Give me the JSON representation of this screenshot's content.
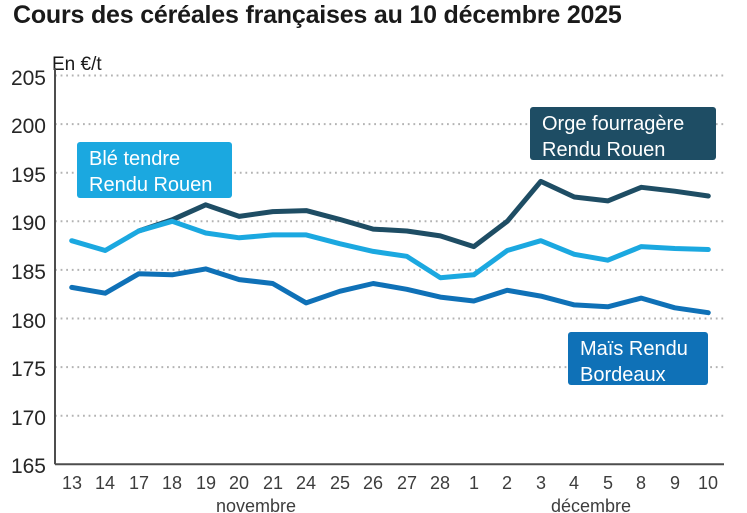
{
  "page": {
    "title": "Cours des céréales françaises au 10 décembre 2025"
  },
  "chart_data": {
    "type": "line",
    "title": "Cours des céréales françaises au 10 décembre 2025",
    "unit_label": "En €/t",
    "categories": [
      "13",
      "14",
      "17",
      "18",
      "19",
      "20",
      "21",
      "24",
      "25",
      "26",
      "27",
      "28",
      "1",
      "2",
      "3",
      "4",
      "5",
      "8",
      "9",
      "10"
    ],
    "month_groups": [
      {
        "label": "novembre",
        "start_index": 0,
        "end_index": 11
      },
      {
        "label": "décembre",
        "start_index": 12,
        "end_index": 19
      }
    ],
    "ylim": [
      165,
      205
    ],
    "yticks": [
      205,
      200,
      195,
      190,
      185,
      180,
      175,
      170,
      165
    ],
    "grid": "horizontal-dotted",
    "grid_color": "#b3b3b3",
    "axis_color": "#4d4d4d",
    "legend_position": "inline-label-boxes",
    "series": [
      {
        "name": "Blé tendre Rendu Rouen",
        "label_lines": [
          "Blé tendre",
          "Rendu Rouen"
        ],
        "color": "#1ba8e0",
        "values": [
          188,
          187,
          189,
          190,
          188.8,
          188.3,
          188.6,
          188.6,
          187.7,
          186.9,
          186.4,
          184.2,
          184.5,
          187,
          188,
          186.6,
          186,
          187.4,
          187.2,
          187.1
        ]
      },
      {
        "name": "Orge fourragère Rendu Rouen",
        "label_lines": [
          "Orge fourragère",
          "Rendu Rouen"
        ],
        "color": "#1e4d64",
        "values": [
          null,
          null,
          189,
          190.15,
          191.7,
          190.5,
          191,
          191.1,
          190.2,
          189.2,
          189,
          188.5,
          187.4,
          190,
          194.1,
          192.5,
          192.1,
          193.5,
          193.1,
          192.6
        ]
      },
      {
        "name": "Maïs Rendu Bordeaux",
        "label_lines": [
          "Maïs Rendu",
          "Bordeaux"
        ],
        "color": "#0f71b7",
        "values": [
          183.2,
          182.6,
          184.6,
          184.5,
          185.1,
          184,
          183.6,
          181.6,
          182.8,
          183.6,
          183,
          182.2,
          181.8,
          182.9,
          182.3,
          181.4,
          181.2,
          182.1,
          181.1,
          180.6
        ]
      }
    ]
  }
}
